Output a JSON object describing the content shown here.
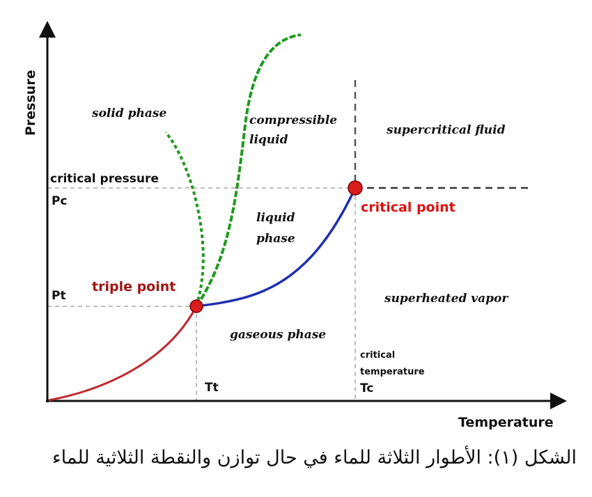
{
  "axes": {
    "y_label": "Pressure",
    "x_label": "Temperature"
  },
  "regions": {
    "solid": "solid phase",
    "compressible_line1": "compressible",
    "compressible_line2": "liquid",
    "supercritical": "supercritical fluid",
    "liquid_line1": "liquid",
    "liquid_line2": "phase",
    "superheated": "superheated vapor",
    "gaseous": "gaseous phase"
  },
  "points": {
    "triple": "triple point",
    "critical": "critical point"
  },
  "pressure_labels": {
    "critical_pressure": "critical pressure",
    "pc": "Pc",
    "pt": "Pt"
  },
  "temperature_labels": {
    "tt": "Tt",
    "critical_temperature_line1": "critical",
    "critical_temperature_line2": "temperature",
    "tc": "Tc"
  },
  "caption": "الشكل (١): الأطوار الثلاثة للماء في حال توازن والنقطة الثلاثية للماء",
  "colors": {
    "sublimation": "#c0282d",
    "vaporization": "#1f2fb0",
    "melting": "#1e9a1e",
    "marker": "#d91c1c",
    "guide": "#bdbdbd"
  }
}
